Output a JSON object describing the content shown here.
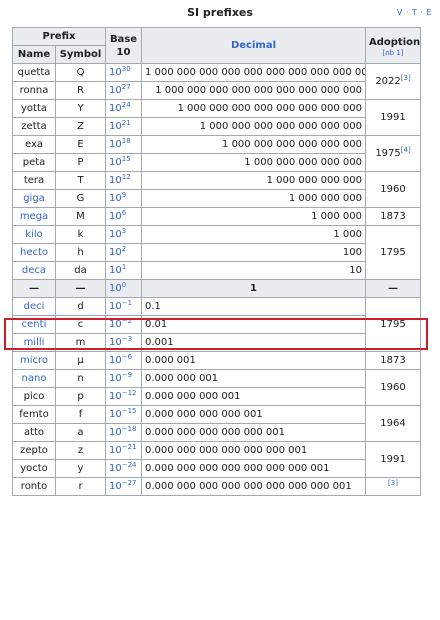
{
  "table": {
    "title": "SI prefixes",
    "navbox": "V · T · E",
    "headers": {
      "prefix": "Prefix",
      "base": "Base 10",
      "decimal": "Decimal",
      "adoption": "Adoption",
      "adoption_note": "[nb 1]",
      "name": "Name",
      "symbol": "Symbol"
    },
    "rows": [
      {
        "name": "quetta",
        "symbol": "Q",
        "exp": "30",
        "decimal": "1 000 000 000 000 000 000 000 000 000 000"
      },
      {
        "name": "ronna",
        "symbol": "R",
        "exp": "27",
        "decimal": "1 000 000 000 000 000 000 000 000 000"
      },
      {
        "name": "yotta",
        "symbol": "Y",
        "exp": "24",
        "decimal": "1 000 000 000 000 000 000 000 000"
      },
      {
        "name": "zetta",
        "symbol": "Z",
        "exp": "21",
        "decimal": "1 000 000 000 000 000 000 000"
      },
      {
        "name": "exa",
        "symbol": "E",
        "exp": "18",
        "decimal": "1 000 000 000 000 000 000"
      },
      {
        "name": "peta",
        "symbol": "P",
        "exp": "15",
        "decimal": "1 000 000 000 000 000"
      },
      {
        "name": "tera",
        "symbol": "T",
        "exp": "12",
        "decimal": "1 000 000 000 000"
      },
      {
        "name": "giga",
        "symbol": "G",
        "exp": "9",
        "decimal": "1 000 000 000"
      },
      {
        "name": "mega",
        "symbol": "M",
        "exp": "6",
        "decimal": "1 000 000"
      },
      {
        "name": "kilo",
        "symbol": "k",
        "exp": "3",
        "decimal": "1 000"
      },
      {
        "name": "hecto",
        "symbol": "h",
        "exp": "2",
        "decimal": "100"
      },
      {
        "name": "deca",
        "symbol": "da",
        "exp": "1",
        "decimal": "10"
      },
      {
        "name": "—",
        "symbol": "—",
        "exp": "0",
        "decimal": "1",
        "adoption": "—"
      },
      {
        "name": "deci",
        "symbol": "d",
        "exp": "−1",
        "decimal": "0.1"
      },
      {
        "name": "centi",
        "symbol": "c",
        "exp": "−2",
        "decimal": "0.01"
      },
      {
        "name": "milli",
        "symbol": "m",
        "exp": "−3",
        "decimal": "0.001"
      },
      {
        "name": "micro",
        "symbol": "μ",
        "exp": "−6",
        "decimal": "0.000 001"
      },
      {
        "name": "nano",
        "symbol": "n",
        "exp": "−9",
        "decimal": "0.000 000 001"
      },
      {
        "name": "pico",
        "symbol": "p",
        "exp": "−12",
        "decimal": "0.000 000 000 001"
      },
      {
        "name": "femto",
        "symbol": "f",
        "exp": "−15",
        "decimal": "0.000 000 000 000 001"
      },
      {
        "name": "atto",
        "symbol": "a",
        "exp": "−18",
        "decimal": "0.000 000 000 000 000 001"
      },
      {
        "name": "zepto",
        "symbol": "z",
        "exp": "−21",
        "decimal": "0.000 000 000 000 000 000 001"
      },
      {
        "name": "yocto",
        "symbol": "y",
        "exp": "−24",
        "decimal": "0.000 000 000 000 000 000 000 001"
      },
      {
        "name": "ronto",
        "symbol": "r",
        "exp": "−27",
        "decimal": "0.000 000 000 000 000 000 000 000 001"
      }
    ],
    "adoption_groups": {
      "g2022": "2022",
      "g2022_ref": "[3]",
      "g1991a": "1991",
      "g1975": "1975",
      "g1975_ref": "[4]",
      "g1960a": "1960",
      "g1873a": "1873",
      "g1795a": "1795",
      "g1795b": "1795",
      "g1873b": "1873",
      "g1960b": "1960",
      "g1964": "1964",
      "g1991b": "1991",
      "partial_ref": "[3]"
    },
    "base_label": "10",
    "highlighted_row": "deca"
  }
}
